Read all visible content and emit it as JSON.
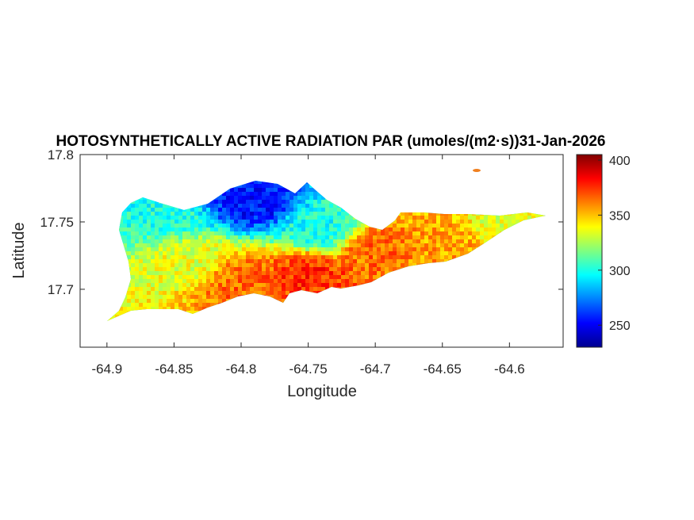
{
  "chart_data": {
    "type": "heatmap",
    "title": "HOTOSYNTHETICALLY ACTIVE RADIATION PAR (umoles/(m2·s))31-Jan-2026",
    "xlabel": "Longitude",
    "ylabel": "Latitude",
    "xlim": [
      -64.92,
      -64.56
    ],
    "ylim": [
      17.657,
      17.8
    ],
    "xticks": [
      -64.9,
      -64.85,
      -64.8,
      -64.75,
      -64.7,
      -64.65,
      -64.6
    ],
    "xtick_labels": [
      "-64.9",
      "-64.85",
      "-64.8",
      "-64.75",
      "-64.7",
      "-64.65",
      "-64.6"
    ],
    "yticks": [
      17.7,
      17.75,
      17.8
    ],
    "ytick_labels": [
      "17.7",
      "17.75",
      "17.8"
    ],
    "colorbar": {
      "colormap": "jet",
      "range": [
        230,
        405
      ],
      "ticks": [
        250,
        300,
        350,
        400
      ],
      "tick_labels": [
        "250",
        "300",
        "350",
        "400"
      ]
    },
    "grid": false,
    "colors": {
      "low": "#00008f",
      "mid_low": "#00ffff",
      "mid": "#ffff00",
      "high": "#ff0000",
      "max": "#800000"
    },
    "regions": [
      {
        "lon": -64.79,
        "lat": 17.765,
        "value": 255
      },
      {
        "lon": -64.86,
        "lat": 17.755,
        "value": 300
      },
      {
        "lon": -64.74,
        "lat": 17.745,
        "value": 300
      },
      {
        "lon": -64.84,
        "lat": 17.72,
        "value": 335
      },
      {
        "lon": -64.8,
        "lat": 17.705,
        "value": 365
      },
      {
        "lon": -64.75,
        "lat": 17.71,
        "value": 375
      },
      {
        "lon": -64.7,
        "lat": 17.73,
        "value": 365
      },
      {
        "lon": -64.65,
        "lat": 17.735,
        "value": 355
      },
      {
        "lon": -64.6,
        "lat": 17.75,
        "value": 335
      }
    ]
  }
}
